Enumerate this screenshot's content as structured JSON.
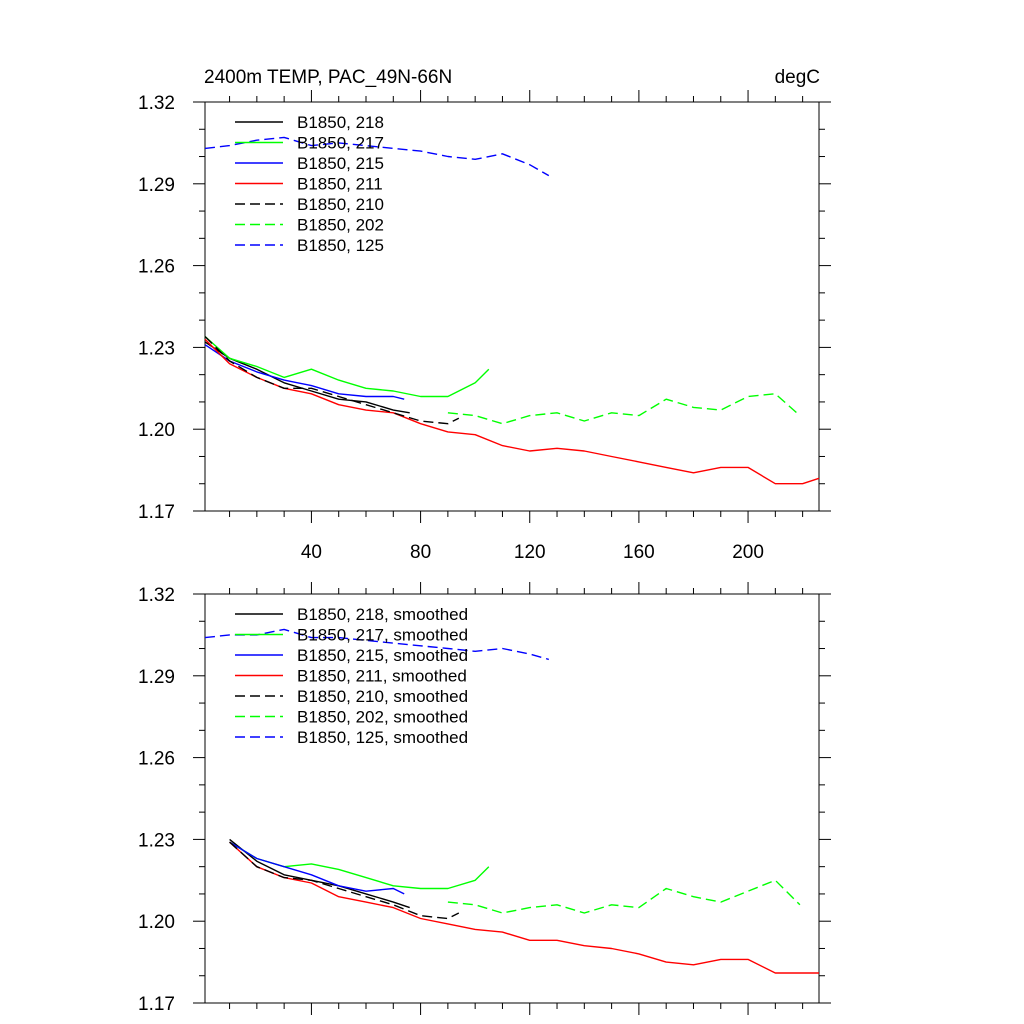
{
  "chart_data": [
    {
      "type": "line",
      "title": "2400m TEMP, PAC_49N-66N",
      "units": "degC",
      "xlim": [
        1,
        226
      ],
      "ylim": [
        1.17,
        1.32
      ],
      "yticks": [
        "1.17",
        "1.20",
        "1.23",
        "1.26",
        "1.29",
        "1.32"
      ],
      "xticks": [
        "40",
        "80",
        "120",
        "160",
        "200"
      ],
      "legend_position": "top-left",
      "series": [
        {
          "name": "B1850, 218",
          "color": "#000000",
          "dash": "solid",
          "x": [
            1,
            10,
            20,
            30,
            40,
            50,
            60,
            70,
            76
          ],
          "y": [
            1.232,
            1.226,
            1.222,
            1.217,
            1.214,
            1.211,
            1.21,
            1.207,
            1.206
          ]
        },
        {
          "name": "B1850, 217",
          "color": "#00ff00",
          "dash": "solid",
          "x": [
            1,
            10,
            20,
            30,
            40,
            50,
            60,
            70,
            80,
            90,
            100,
            105
          ],
          "y": [
            1.234,
            1.226,
            1.223,
            1.219,
            1.222,
            1.218,
            1.215,
            1.214,
            1.212,
            1.212,
            1.217,
            1.222
          ]
        },
        {
          "name": "B1850, 215",
          "color": "#0000ff",
          "dash": "solid",
          "x": [
            1,
            10,
            20,
            30,
            40,
            50,
            60,
            70,
            74
          ],
          "y": [
            1.231,
            1.225,
            1.221,
            1.218,
            1.216,
            1.213,
            1.212,
            1.212,
            1.211
          ]
        },
        {
          "name": "B1850, 211",
          "color": "#ff0000",
          "dash": "solid",
          "x": [
            1,
            10,
            20,
            30,
            40,
            50,
            60,
            70,
            80,
            90,
            100,
            110,
            120,
            130,
            140,
            150,
            160,
            170,
            180,
            190,
            200,
            210,
            220,
            226
          ],
          "y": [
            1.233,
            1.224,
            1.219,
            1.215,
            1.213,
            1.209,
            1.207,
            1.206,
            1.202,
            1.199,
            1.198,
            1.194,
            1.192,
            1.193,
            1.192,
            1.19,
            1.188,
            1.186,
            1.184,
            1.186,
            1.186,
            1.18,
            1.18,
            1.182
          ]
        },
        {
          "name": "B1850, 210",
          "color": "#000000",
          "dash": "dashed",
          "x": [
            1,
            10,
            20,
            30,
            40,
            50,
            60,
            70,
            80,
            90,
            94
          ],
          "y": [
            1.234,
            1.225,
            1.219,
            1.215,
            1.215,
            1.212,
            1.209,
            1.206,
            1.203,
            1.202,
            1.204
          ]
        },
        {
          "name": "B1850, 202",
          "color": "#00ff00",
          "dash": "dashed",
          "x": [
            90,
            100,
            110,
            120,
            130,
            140,
            150,
            160,
            170,
            180,
            190,
            200,
            210,
            219
          ],
          "y": [
            1.206,
            1.205,
            1.202,
            1.205,
            1.206,
            1.203,
            1.206,
            1.205,
            1.211,
            1.208,
            1.207,
            1.212,
            1.213,
            1.205
          ]
        },
        {
          "name": "B1850, 125",
          "color": "#0000ff",
          "dash": "dashed",
          "x": [
            1,
            10,
            20,
            30,
            40,
            50,
            60,
            70,
            80,
            90,
            100,
            110,
            120,
            127
          ],
          "y": [
            1.303,
            1.304,
            1.306,
            1.307,
            1.304,
            1.305,
            1.304,
            1.303,
            1.302,
            1.3,
            1.299,
            1.301,
            1.297,
            1.293
          ]
        }
      ]
    },
    {
      "type": "line",
      "title": "",
      "units": "",
      "xlim": [
        1,
        226
      ],
      "ylim": [
        1.17,
        1.32
      ],
      "yticks": [
        "1.17",
        "1.20",
        "1.23",
        "1.26",
        "1.29",
        "1.32"
      ],
      "xticks": [],
      "legend_position": "top-left",
      "series": [
        {
          "name": "B1850, 218, smoothed",
          "color": "#000000",
          "dash": "solid",
          "x": [
            10,
            20,
            30,
            40,
            50,
            60,
            70,
            76
          ],
          "y": [
            1.23,
            1.222,
            1.217,
            1.215,
            1.213,
            1.21,
            1.207,
            1.205
          ]
        },
        {
          "name": "B1850, 217, smoothed",
          "color": "#00ff00",
          "dash": "solid",
          "x": [
            10,
            20,
            30,
            40,
            50,
            60,
            70,
            80,
            90,
            100,
            105
          ],
          "y": [
            1.229,
            1.223,
            1.22,
            1.221,
            1.219,
            1.216,
            1.213,
            1.212,
            1.212,
            1.215,
            1.22
          ]
        },
        {
          "name": "B1850, 215, smoothed",
          "color": "#0000ff",
          "dash": "solid",
          "x": [
            10,
            20,
            30,
            40,
            50,
            60,
            70,
            74
          ],
          "y": [
            1.229,
            1.223,
            1.22,
            1.217,
            1.213,
            1.211,
            1.212,
            1.21
          ]
        },
        {
          "name": "B1850, 211, smoothed",
          "color": "#ff0000",
          "dash": "solid",
          "x": [
            10,
            20,
            30,
            40,
            50,
            60,
            70,
            80,
            90,
            100,
            110,
            120,
            130,
            140,
            150,
            160,
            170,
            180,
            190,
            200,
            210,
            220,
            226
          ],
          "y": [
            1.229,
            1.22,
            1.216,
            1.214,
            1.209,
            1.207,
            1.205,
            1.201,
            1.199,
            1.197,
            1.196,
            1.193,
            1.193,
            1.191,
            1.19,
            1.188,
            1.185,
            1.184,
            1.186,
            1.186,
            1.181,
            1.181,
            1.181
          ]
        },
        {
          "name": "B1850, 210, smoothed",
          "color": "#000000",
          "dash": "dashed",
          "x": [
            10,
            20,
            30,
            40,
            50,
            60,
            70,
            80,
            90,
            94
          ],
          "y": [
            1.229,
            1.22,
            1.216,
            1.215,
            1.212,
            1.209,
            1.206,
            1.202,
            1.201,
            1.203
          ]
        },
        {
          "name": "B1850, 202, smoothed",
          "color": "#00ff00",
          "dash": "dashed",
          "x": [
            90,
            100,
            110,
            120,
            130,
            140,
            150,
            160,
            170,
            180,
            190,
            200,
            210,
            219
          ],
          "y": [
            1.207,
            1.206,
            1.203,
            1.205,
            1.206,
            1.203,
            1.206,
            1.205,
            1.212,
            1.209,
            1.207,
            1.211,
            1.215,
            1.206
          ]
        },
        {
          "name": "B1850, 125, smoothed",
          "color": "#0000ff",
          "dash": "dashed",
          "x": [
            1,
            10,
            20,
            30,
            40,
            50,
            60,
            70,
            80,
            90,
            100,
            110,
            120,
            127
          ],
          "y": [
            1.304,
            1.305,
            1.305,
            1.307,
            1.304,
            1.304,
            1.303,
            1.302,
            1.301,
            1.3,
            1.299,
            1.3,
            1.298,
            1.296
          ]
        }
      ]
    }
  ]
}
